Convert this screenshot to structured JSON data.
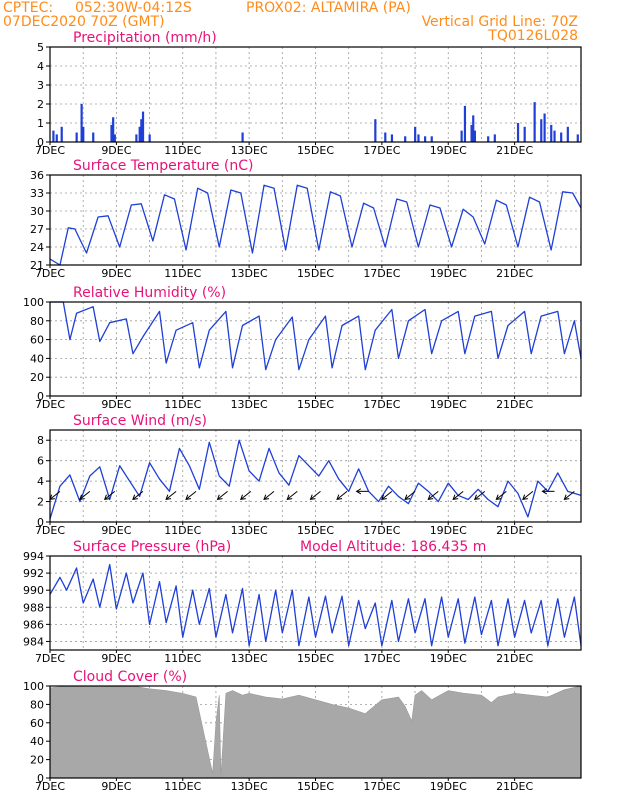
{
  "header": {
    "line1_left": "CPTEC:",
    "line1_coords": "052:30W-04:12S",
    "line1_station": "PROX02: ALTAMIRA (PA)",
    "line2_left": "07DEC2020 70Z (GMT)",
    "line2_right": "Vertical Grid Line: 70Z",
    "line3_right": "TQ0126L028"
  },
  "colors": {
    "header": "#ff8c1a",
    "title": "#e8127a",
    "series": "#1f3fd6",
    "cloud": "#a8a8a8"
  },
  "x_ticks": [
    "7DEC",
    "9DEC",
    "11DEC",
    "13DEC",
    "15DEC",
    "17DEC",
    "19DEC",
    "21DEC"
  ],
  "chart_data": [
    {
      "type": "bar",
      "title": "Precipitation (mm/h)",
      "ylim": [
        0,
        5
      ],
      "yticks": [
        "0",
        "1",
        "2",
        "3",
        "4",
        "5"
      ],
      "x_days": [
        0.1,
        0.2,
        0.35,
        0.8,
        0.95,
        1.0,
        1.3,
        1.85,
        1.9,
        1.95,
        2.6,
        2.7,
        2.75,
        2.8,
        3.0,
        5.8,
        9.8,
        10.1,
        10.3,
        10.7,
        11.0,
        11.1,
        11.3,
        11.5,
        12.4,
        12.5,
        12.7,
        12.75,
        12.8,
        13.2,
        13.4,
        14.1,
        14.3,
        14.6,
        14.8,
        14.9,
        15.1,
        15.2,
        15.4,
        15.6,
        15.9
      ],
      "values": [
        0.6,
        0.4,
        0.8,
        0.5,
        2.0,
        0.8,
        0.5,
        0.9,
        1.3,
        0.4,
        0.4,
        0.8,
        1.2,
        1.6,
        0.4,
        0.5,
        1.2,
        0.5,
        0.4,
        0.3,
        0.8,
        0.4,
        0.3,
        0.3,
        0.6,
        1.9,
        0.9,
        1.4,
        0.6,
        0.3,
        0.4,
        1.0,
        0.8,
        2.1,
        1.2,
        1.5,
        0.9,
        0.6,
        0.5,
        0.8,
        0.4
      ]
    },
    {
      "type": "line",
      "title": "Surface Temperature (nC)",
      "ylim": [
        21,
        36
      ],
      "yticks": [
        "21",
        "24",
        "27",
        "30",
        "33",
        "36"
      ],
      "x_days": [
        0.0,
        0.3,
        0.55,
        0.75,
        1.1,
        1.45,
        1.75,
        2.1,
        2.45,
        2.75,
        3.1,
        3.45,
        3.75,
        4.1,
        4.45,
        4.75,
        5.1,
        5.45,
        5.75,
        6.1,
        6.45,
        6.75,
        7.1,
        7.45,
        7.75,
        8.1,
        8.45,
        8.75,
        9.1,
        9.45,
        9.75,
        10.1,
        10.45,
        10.75,
        11.1,
        11.45,
        11.75,
        12.1,
        12.45,
        12.75,
        13.1,
        13.45,
        13.75,
        14.1,
        14.45,
        14.75,
        15.1,
        15.45,
        15.75,
        16.0
      ],
      "values": [
        22.0,
        21.0,
        27.2,
        27.0,
        23.0,
        29.0,
        29.2,
        24.0,
        31.0,
        31.2,
        25.0,
        32.7,
        32.0,
        23.5,
        33.8,
        33.0,
        24.0,
        33.5,
        33.0,
        23.0,
        34.3,
        33.8,
        23.5,
        34.3,
        33.8,
        23.5,
        33.2,
        32.5,
        24.0,
        31.3,
        30.5,
        24.0,
        32.0,
        31.5,
        24.0,
        31.0,
        30.5,
        24.0,
        30.3,
        29.0,
        24.5,
        31.8,
        31.0,
        24.0,
        32.3,
        31.5,
        23.5,
        33.2,
        33.0,
        30.5
      ]
    },
    {
      "type": "line",
      "title": "Relative Humidity (%)",
      "ylim": [
        0,
        100
      ],
      "yticks": [
        "0",
        "20",
        "40",
        "60",
        "80",
        "100"
      ],
      "x_days": [
        0.0,
        0.4,
        0.6,
        0.8,
        1.3,
        1.5,
        1.8,
        2.3,
        2.5,
        2.8,
        3.3,
        3.5,
        3.8,
        4.3,
        4.5,
        4.8,
        5.3,
        5.5,
        5.8,
        6.3,
        6.5,
        6.8,
        7.3,
        7.5,
        7.8,
        8.3,
        8.5,
        8.8,
        9.3,
        9.5,
        9.8,
        10.3,
        10.5,
        10.8,
        11.3,
        11.5,
        11.8,
        12.3,
        12.5,
        12.8,
        13.3,
        13.5,
        13.8,
        14.3,
        14.5,
        14.8,
        15.3,
        15.5,
        15.8,
        16.0
      ],
      "values": [
        100,
        100,
        60,
        88,
        95,
        58,
        78,
        82,
        45,
        63,
        90,
        35,
        70,
        78,
        30,
        70,
        90,
        30,
        75,
        85,
        28,
        60,
        84,
        28,
        60,
        85,
        30,
        75,
        85,
        28,
        70,
        92,
        40,
        80,
        92,
        45,
        80,
        90,
        45,
        85,
        90,
        40,
        75,
        90,
        45,
        85,
        90,
        45,
        80,
        40
      ]
    },
    {
      "type": "line",
      "title": "Surface Wind (m/s)",
      "ylim": [
        0,
        9
      ],
      "yticks": [
        "0",
        "2",
        "4",
        "6",
        "8"
      ],
      "x_days": [
        0.0,
        0.3,
        0.6,
        0.9,
        1.2,
        1.5,
        1.8,
        2.1,
        2.4,
        2.7,
        3.0,
        3.3,
        3.6,
        3.9,
        4.2,
        4.5,
        4.8,
        5.1,
        5.4,
        5.7,
        6.0,
        6.3,
        6.6,
        6.9,
        7.2,
        7.5,
        7.8,
        8.1,
        8.4,
        8.7,
        9.0,
        9.3,
        9.6,
        9.9,
        10.2,
        10.5,
        10.8,
        11.1,
        11.4,
        11.7,
        12.0,
        12.3,
        12.6,
        12.9,
        13.2,
        13.5,
        13.8,
        14.1,
        14.4,
        14.7,
        15.0,
        15.3,
        15.6,
        16.0
      ],
      "values": [
        0.3,
        3.5,
        4.6,
        2.0,
        4.5,
        5.4,
        2.2,
        5.5,
        4.0,
        2.5,
        5.8,
        4.2,
        3.0,
        7.2,
        5.5,
        3.2,
        7.8,
        4.5,
        3.5,
        8.0,
        5.0,
        4.0,
        7.2,
        4.8,
        3.6,
        6.5,
        5.5,
        4.5,
        6.0,
        4.2,
        3.0,
        5.2,
        3.0,
        2.0,
        3.5,
        2.5,
        1.8,
        3.8,
        3.0,
        2.0,
        3.8,
        2.6,
        2.2,
        3.2,
        2.2,
        1.5,
        4.0,
        2.8,
        0.5,
        4.0,
        3.0,
        4.8,
        3.0,
        2.6
      ],
      "wind_arrows_x_days": [
        0.3,
        1.2,
        1.95,
        2.8,
        3.8,
        4.4,
        5.35,
        6.05,
        6.75,
        7.45,
        8.15,
        8.95,
        9.6,
        10.3,
        11.0,
        11.7,
        12.45,
        13.1,
        13.75,
        14.55,
        15.2,
        15.8
      ],
      "wind_arrows_dir": [
        "sw",
        "sw",
        "sw",
        "sw",
        "sw",
        "sw",
        "sw",
        "sw",
        "sw",
        "sw",
        "sw",
        "sw",
        "w",
        "sw",
        "sw",
        "sw",
        "sw",
        "sw",
        "sw",
        "sw",
        "w",
        "sw"
      ]
    },
    {
      "type": "line",
      "title": "Surface Pressure (hPa)",
      "annotation": "Model Altitude: 186.435 m",
      "ylim": [
        983,
        994
      ],
      "yticks": [
        "984",
        "986",
        "988",
        "990",
        "992",
        "994"
      ],
      "x_days": [
        0.0,
        0.3,
        0.5,
        0.8,
        1.0,
        1.3,
        1.5,
        1.8,
        2.0,
        2.3,
        2.5,
        2.8,
        3.0,
        3.3,
        3.5,
        3.8,
        4.0,
        4.3,
        4.5,
        4.8,
        5.0,
        5.3,
        5.5,
        5.8,
        6.0,
        6.3,
        6.5,
        6.8,
        7.0,
        7.3,
        7.5,
        7.8,
        8.0,
        8.3,
        8.5,
        8.8,
        9.0,
        9.3,
        9.5,
        9.8,
        10.0,
        10.3,
        10.5,
        10.8,
        11.0,
        11.3,
        11.5,
        11.8,
        12.0,
        12.3,
        12.5,
        12.8,
        13.0,
        13.3,
        13.5,
        13.8,
        14.0,
        14.3,
        14.5,
        14.8,
        15.0,
        15.3,
        15.5,
        15.8,
        16.0
      ],
      "values": [
        989.5,
        991.5,
        990.0,
        992.6,
        988.5,
        991.3,
        988.0,
        993.0,
        987.8,
        992.0,
        988.5,
        992.0,
        986.0,
        991.0,
        986.2,
        990.5,
        984.5,
        990.0,
        986.0,
        990.2,
        984.5,
        989.5,
        985.0,
        990.2,
        983.5,
        989.5,
        984.0,
        990.0,
        985.0,
        990.0,
        983.5,
        989.2,
        984.5,
        989.3,
        985.0,
        989.3,
        983.5,
        988.8,
        985.5,
        988.5,
        983.5,
        988.8,
        984.0,
        989.0,
        985.0,
        989.0,
        983.5,
        989.2,
        984.5,
        989.0,
        983.8,
        989.2,
        984.8,
        988.8,
        983.5,
        989.0,
        984.5,
        988.8,
        985.0,
        988.8,
        983.5,
        989.0,
        984.5,
        989.2,
        983.5
      ]
    },
    {
      "type": "area",
      "title": "Cloud Cover (%)",
      "ylim": [
        0,
        100
      ],
      "yticks": [
        "0",
        "20",
        "40",
        "60",
        "80",
        "100"
      ],
      "x_days": [
        0.0,
        0.5,
        1.0,
        1.5,
        2.0,
        2.5,
        3.0,
        3.5,
        4.0,
        4.4,
        4.9,
        5.0,
        5.1,
        5.15,
        5.3,
        5.5,
        5.8,
        6.0,
        6.5,
        7.0,
        7.5,
        8.0,
        8.5,
        9.0,
        9.5,
        10.0,
        10.5,
        10.7,
        10.9,
        11.0,
        11.2,
        11.5,
        12.0,
        12.5,
        13.0,
        13.3,
        13.5,
        14.0,
        14.5,
        15.0,
        15.5,
        16.0
      ],
      "values": [
        98,
        100,
        100,
        100,
        99,
        100,
        97,
        95,
        92,
        88,
        5,
        60,
        90,
        2,
        92,
        95,
        90,
        92,
        88,
        86,
        90,
        85,
        80,
        76,
        70,
        85,
        88,
        78,
        62,
        90,
        95,
        85,
        95,
        92,
        90,
        82,
        88,
        92,
        90,
        88,
        96,
        100
      ]
    }
  ]
}
